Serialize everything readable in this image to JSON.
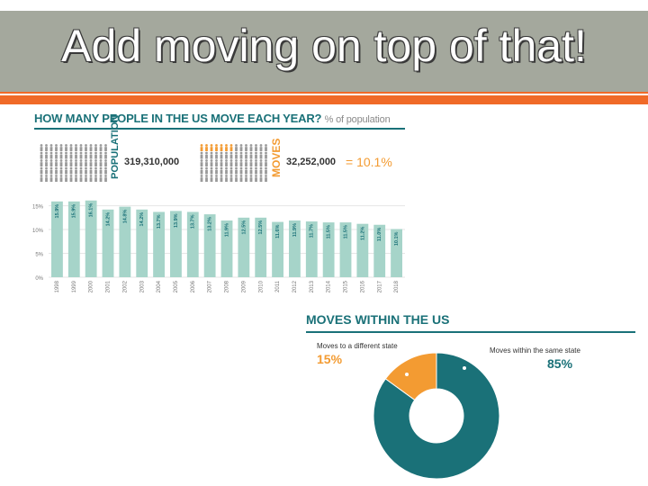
{
  "slide": {
    "title": "Add moving on top of that!",
    "colors": {
      "title_bar": "#a4a89d",
      "accent": "#f06a28",
      "teal": "#1a7178",
      "bar": "#a6d4c9",
      "orange": "#f39b32"
    }
  },
  "infographic": {
    "heading": "HOW MANY PEOPLE IN THE US MOVE EACH YEAR?",
    "subheading": "% of population",
    "population_label": "POPULATION",
    "population_value": "319,310,000",
    "moves_label": "MOVES",
    "moves_value": "32,252,000",
    "equals_text": "= 10.1%"
  },
  "chart_data": [
    {
      "type": "bar",
      "categories": [
        "1998",
        "1999",
        "2000",
        "2001",
        "2002",
        "2003",
        "2004",
        "2005",
        "2006",
        "2007",
        "2008",
        "2009",
        "2010",
        "2011",
        "2012",
        "2013",
        "2014",
        "2015",
        "2016",
        "2017",
        "2018"
      ],
      "values": [
        15.9,
        15.9,
        16.1,
        14.2,
        14.8,
        14.2,
        13.7,
        13.9,
        13.7,
        13.2,
        11.9,
        12.5,
        12.5,
        11.6,
        11.9,
        11.7,
        11.5,
        11.5,
        11.2,
        11.0,
        10.1
      ],
      "data_labels": [
        "15.9%",
        "15.9%",
        "16.1%",
        "14.2%",
        "14.8%",
        "14.2%",
        "13.7%",
        "13.9%",
        "13.7%",
        "13.2%",
        "11.9%",
        "12.5%",
        "12.5%",
        "11.6%",
        "11.9%",
        "11.7%",
        "11.5%",
        "11.5%",
        "11.2%",
        "11.0%",
        "10.1%"
      ],
      "y_ticks": [
        "15%",
        "10%",
        "5%",
        "0%"
      ],
      "ylim": [
        0,
        17
      ],
      "grid": true,
      "title": "",
      "xlabel": "",
      "ylabel": ""
    },
    {
      "type": "pie",
      "title": "MOVES WITHIN THE US",
      "slices": [
        {
          "label": "Moves within the same state",
          "value": 85,
          "value_text": "85%",
          "color": "#1a7178"
        },
        {
          "label": "Moves to a different state",
          "value": 15,
          "value_text": "15%",
          "color": "#f39b32"
        }
      ]
    }
  ]
}
